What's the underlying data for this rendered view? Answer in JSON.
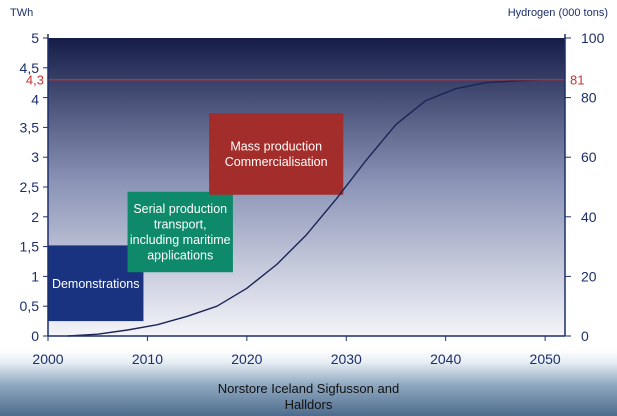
{
  "chart_data": {
    "type": "line",
    "left_axis_unit": "TWh",
    "right_axis_unit": "Hydrogen (000 tons)",
    "x_ticks": [
      "2000",
      "2010",
      "2020",
      "2030",
      "2040",
      "2050"
    ],
    "y_left_ticks": [
      "0",
      "0,5",
      "1",
      "1,5",
      "2",
      "2,5",
      "3",
      "3,5",
      "4",
      "4,5",
      "5"
    ],
    "y_right_ticks": [
      "0",
      "20",
      "40",
      "60",
      "80",
      "100"
    ],
    "xlim": [
      2000,
      2052
    ],
    "ylim_left": [
      0,
      5
    ],
    "ylim_right": [
      0,
      100
    ],
    "series": [
      {
        "x": [
          2002,
          2005,
          2008,
          2011,
          2014,
          2017,
          2020,
          2023,
          2026,
          2029,
          2032,
          2035,
          2038,
          2041,
          2044,
          2047,
          2050,
          2052
        ],
        "y": [
          0,
          0.03,
          0.1,
          0.19,
          0.33,
          0.5,
          0.8,
          1.2,
          1.7,
          2.3,
          2.95,
          3.55,
          3.95,
          4.15,
          4.25,
          4.28,
          4.3,
          4.3
        ]
      }
    ],
    "reference_line": {
      "y": 4.3,
      "left_label": "4,3",
      "right_label": "81",
      "color": "#c83232"
    },
    "phases": [
      {
        "lines": [
          "Demonstrations"
        ],
        "color": "#1a3380",
        "x_start": 2000,
        "x_end": 2009.6,
        "y_bottom": 0.25,
        "y_top": 1.52
      },
      {
        "lines": [
          "Serial production",
          "transport,",
          "including maritime",
          "applications"
        ],
        "color": "#0e8a6a",
        "x_start": 2008,
        "x_end": 2018.6,
        "y_bottom": 1.07,
        "y_top": 2.42
      },
      {
        "lines": [
          "Mass production",
          "Commercialisation"
        ],
        "color": "#a32d2a",
        "x_start": 2016.2,
        "x_end": 2029.7,
        "y_bottom": 2.37,
        "y_top": 3.74
      }
    ],
    "plot_background": [
      "#151d47",
      "#8a93b6",
      "#f4f5f9"
    ],
    "grid": false
  },
  "caption": [
    "Norstore Iceland Sigfusson and",
    "Halldors"
  ]
}
